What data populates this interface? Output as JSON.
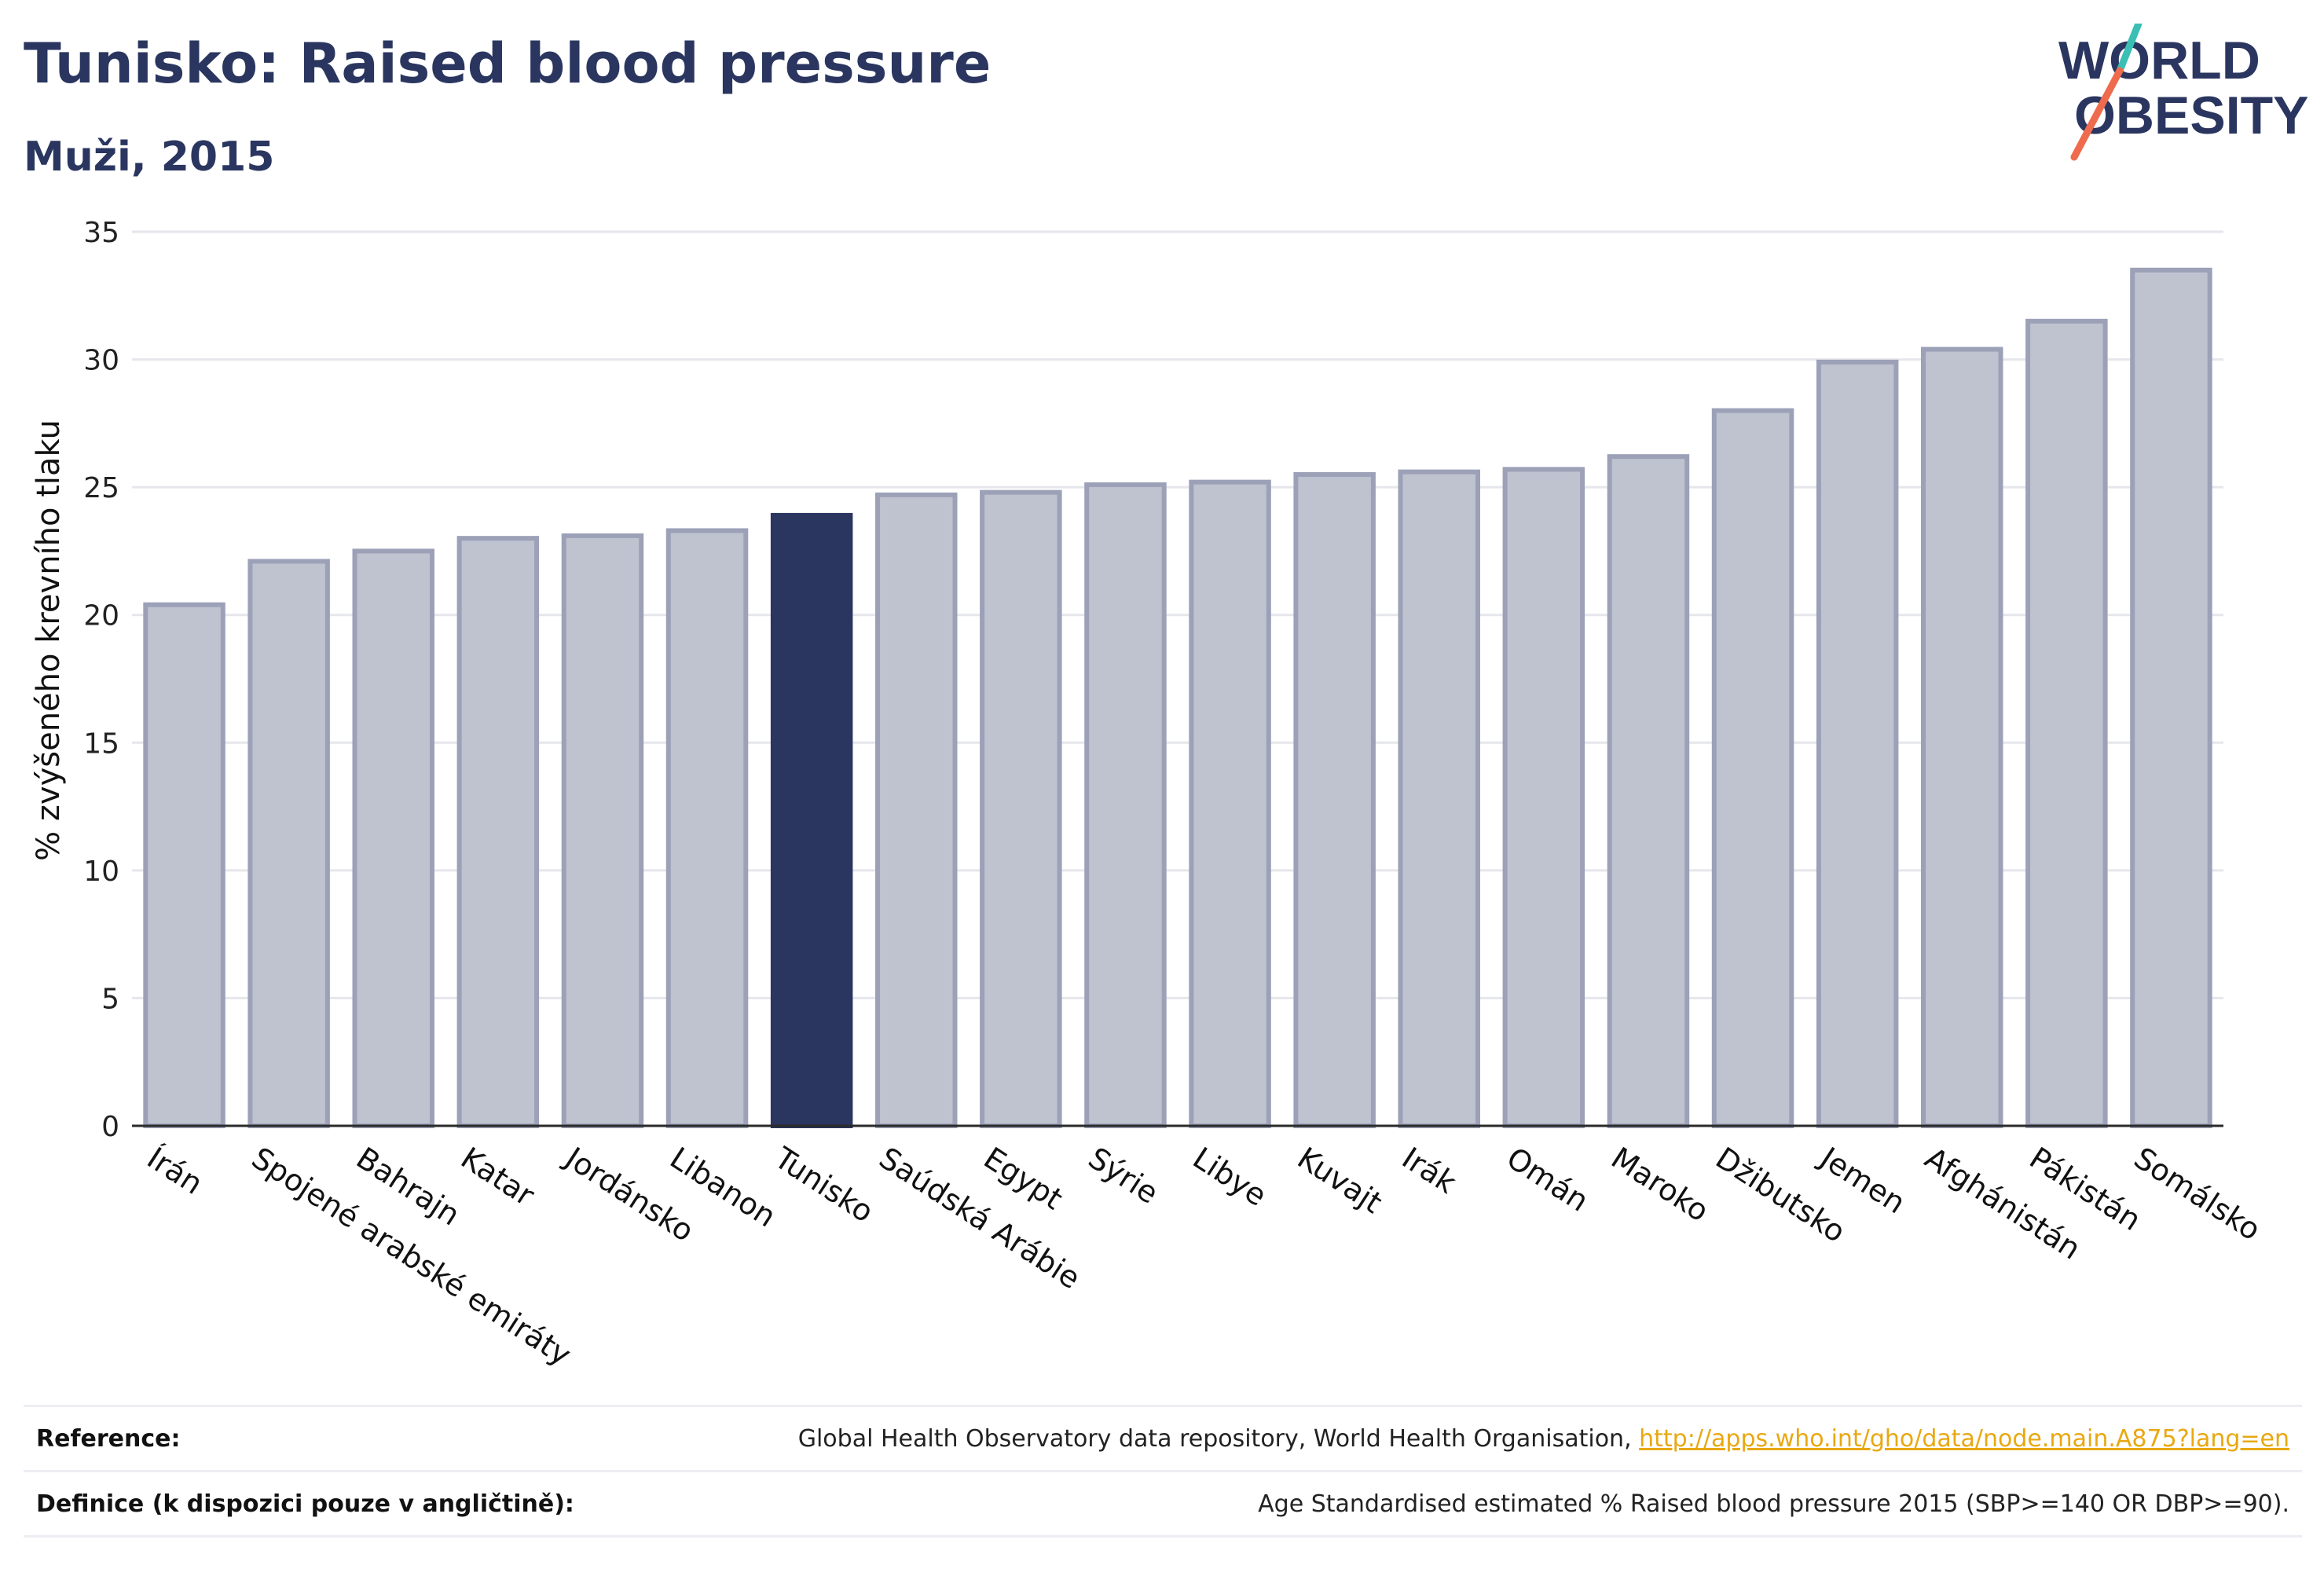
{
  "header": {
    "title": "Tunisko: Raised blood pressure",
    "subtitle": "Muži, 2015"
  },
  "logo": {
    "line1": "WORLD",
    "line2": "OBESITY",
    "colors": {
      "text": "#2a365f",
      "slash_top": "#3bbfb5",
      "slash_bottom": "#ef6b4d"
    }
  },
  "chart_data": {
    "type": "bar",
    "title": "Tunisko: Raised blood pressure",
    "subtitle": "Muži, 2015",
    "xlabel": "",
    "ylabel": "% zvýšeného krevního tlaku",
    "ylim": [
      0,
      35
    ],
    "yticks": [
      0,
      5,
      10,
      15,
      20,
      25,
      30,
      35
    ],
    "grid": true,
    "categories": [
      "Írán",
      "Spojené arabské emiráty",
      "Bahrajn",
      "Katar",
      "Jordánsko",
      "Libanon",
      "Tunisko",
      "Saúdská Arábie",
      "Egypt",
      "Sýrie",
      "Libye",
      "Kuvajt",
      "Irák",
      "Omán",
      "Maroko",
      "Džibutsko",
      "Jemen",
      "Afghánistán",
      "Pákistán",
      "Somálsko"
    ],
    "values": [
      20.4,
      22.1,
      22.5,
      23.0,
      23.1,
      23.3,
      23.9,
      24.7,
      24.8,
      25.1,
      25.2,
      25.5,
      25.6,
      25.7,
      26.2,
      28.0,
      29.9,
      30.4,
      31.5,
      33.5
    ],
    "highlight": "Tunisko",
    "colors": {
      "bar": "#bfc2cf",
      "bar_border": "#9ca1b8",
      "highlight": "#2a365f",
      "grid": "#e6e7ec",
      "axis": "#2a2a2a"
    }
  },
  "reference": {
    "label": "Reference:",
    "text": "Global Health Observatory data repository, World Health Organisation, ",
    "link": "http://apps.who.int/gho/data/node.main.A875?lang=en"
  },
  "definition": {
    "label": "Definice (k dispozici pouze v angličtině):",
    "text": "Age Standardised estimated % Raised blood pressure 2015 (SBP>=140 OR DBP>=90)."
  }
}
